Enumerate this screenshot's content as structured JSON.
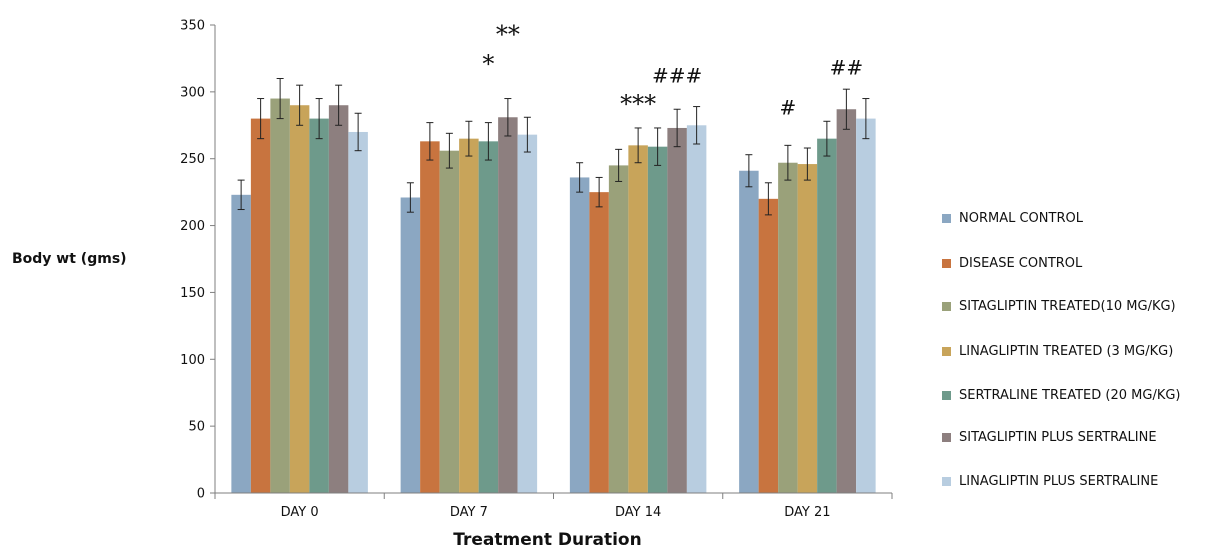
{
  "chart_data": {
    "type": "bar",
    "title": "",
    "xlabel": "Treatment Duration",
    "ylabel": "Body wt (gms)",
    "categories": [
      "DAY 0",
      "DAY 7",
      "DAY 14",
      "DAY 21"
    ],
    "ylim": [
      0,
      350
    ],
    "yticks": [
      0,
      50,
      100,
      150,
      200,
      250,
      300,
      350
    ],
    "grid": false,
    "legend_position": "right",
    "series": [
      {
        "name": "NORMAL CONTROL",
        "color": "#8BA7C2",
        "values": [
          223,
          221,
          236,
          241
        ],
        "errors": [
          11,
          11,
          11,
          12
        ]
      },
      {
        "name": "DISEASE CONTROL",
        "color": "#C8743F",
        "values": [
          280,
          263,
          225,
          220
        ],
        "errors": [
          15,
          14,
          11,
          12
        ]
      },
      {
        "name": "SITAGLIPTIN TREATED(10 MG/KG)",
        "color": "#9AA17A",
        "values": [
          295,
          256,
          245,
          247
        ],
        "errors": [
          15,
          13,
          12,
          13
        ]
      },
      {
        "name": "LINAGLIPTIN TREATED (3 MG/KG)",
        "color": "#C8A45A",
        "values": [
          290,
          265,
          260,
          246
        ],
        "errors": [
          15,
          13,
          13,
          12
        ]
      },
      {
        "name": "SERTRALINE TREATED (20 MG/KG)",
        "color": "#6E9A8B",
        "values": [
          280,
          263,
          259,
          265
        ],
        "errors": [
          15,
          14,
          14,
          13
        ]
      },
      {
        "name": "SITAGLIPTIN PLUS SERTRALINE",
        "color": "#8D7F7F",
        "values": [
          290,
          281,
          273,
          287
        ],
        "errors": [
          15,
          14,
          14,
          15
        ]
      },
      {
        "name": "LINAGLIPTIN PLUS SERTRALINE",
        "color": "#B8CDE0",
        "values": [
          270,
          268,
          275,
          280
        ],
        "errors": [
          14,
          13,
          14,
          15
        ]
      }
    ],
    "annotations": [
      {
        "text": "*",
        "category": "DAY 7",
        "series": 4,
        "y": 315
      },
      {
        "text": "**",
        "category": "DAY 7",
        "series": 5,
        "y": 337
      },
      {
        "text": "***",
        "category": "DAY 14",
        "series": 3,
        "y": 285
      },
      {
        "text": "###",
        "category": "DAY 14",
        "series": 5,
        "y": 307
      },
      {
        "text": "#",
        "category": "DAY 21",
        "series": 2,
        "y": 283
      },
      {
        "text": "##",
        "category": "DAY 21",
        "series": 5,
        "y": 313
      }
    ]
  }
}
